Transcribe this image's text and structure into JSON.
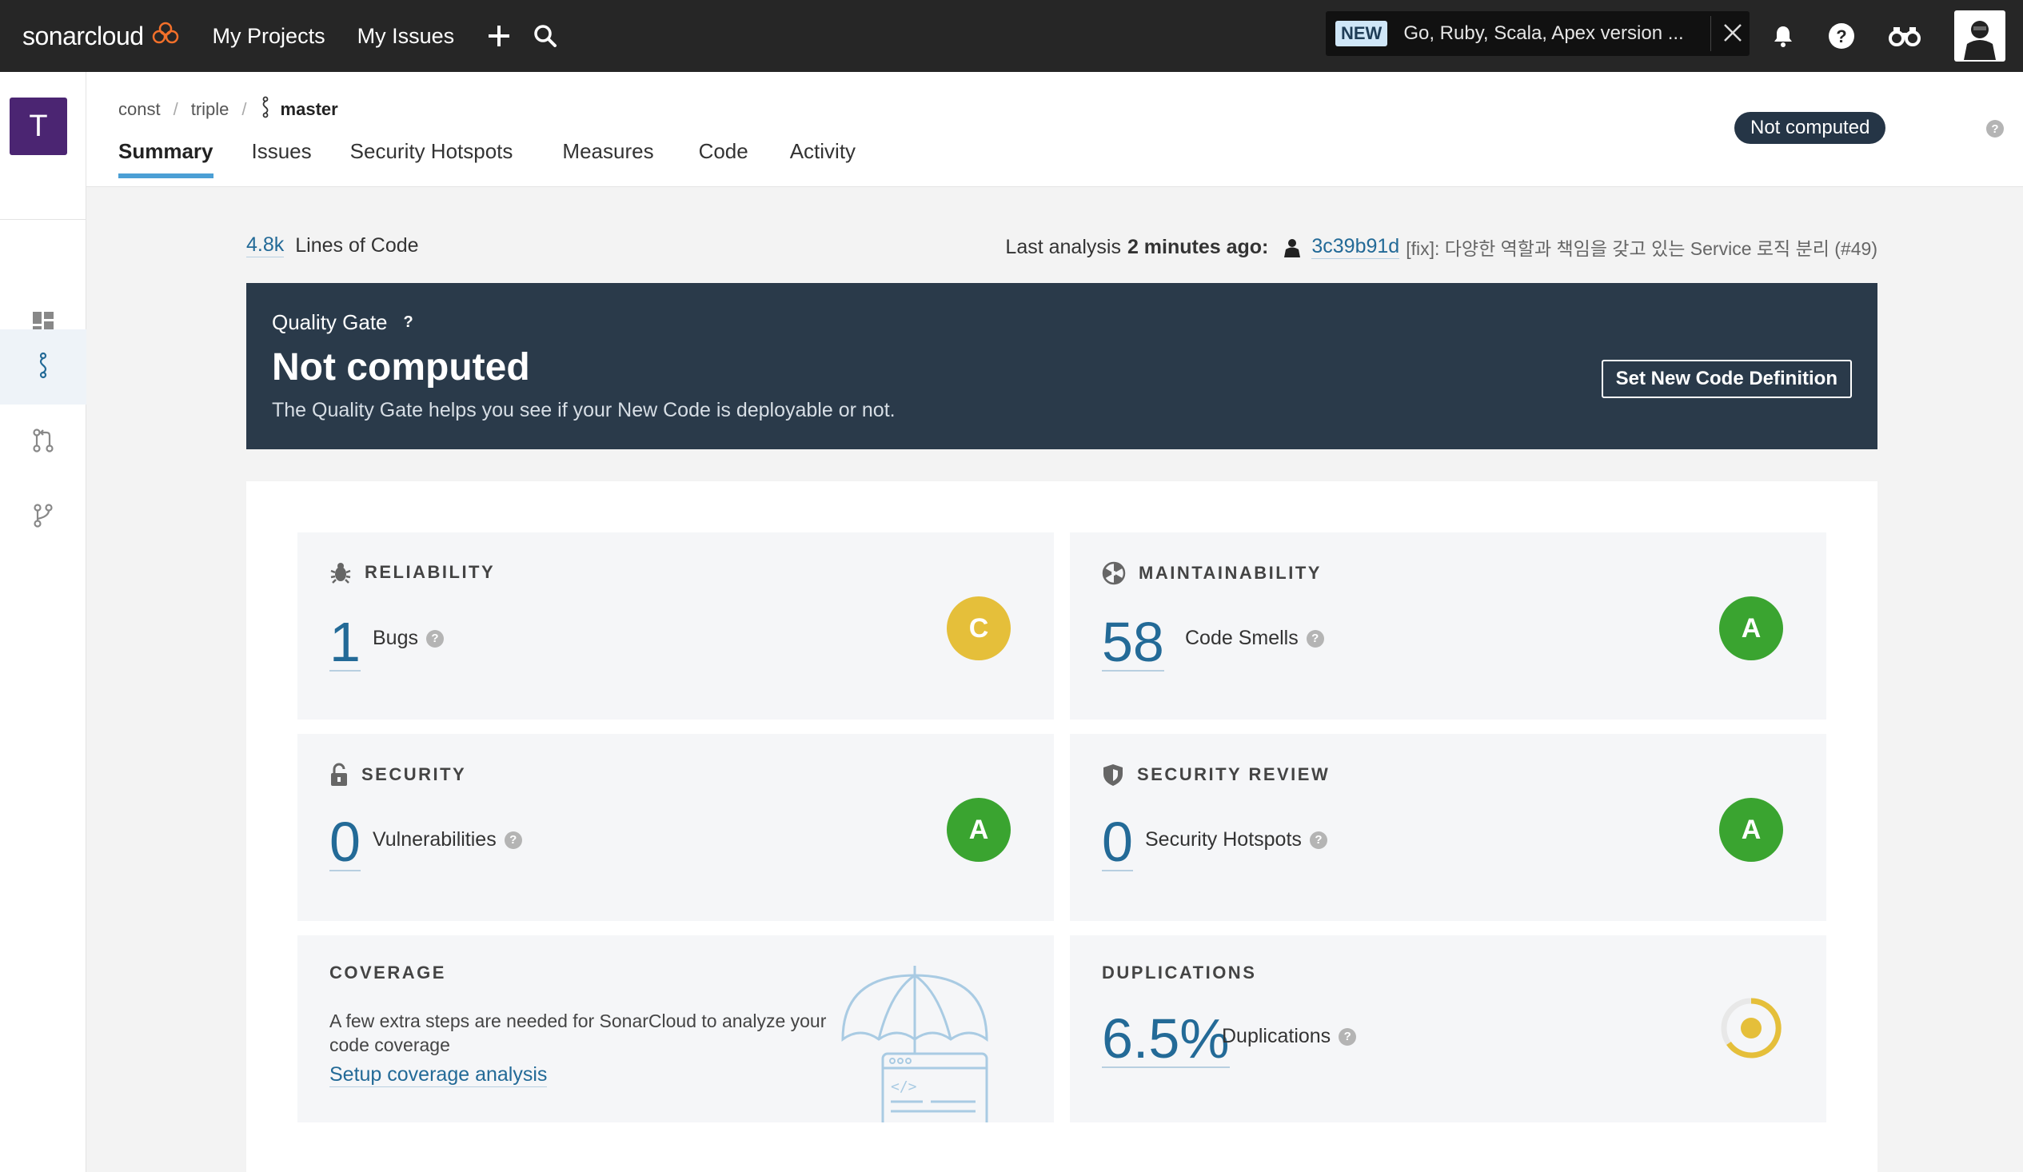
{
  "topbar": {
    "brand": "sonarcloud",
    "nav": [
      "My Projects",
      "My Issues"
    ],
    "news_badge": "NEW",
    "news_text": "Go, Ruby, Scala, Apex version ..."
  },
  "sidebar": {
    "project_initial": "T"
  },
  "breadcrumb": {
    "org": "const",
    "project": "triple",
    "branch": "master"
  },
  "tabs": [
    "Summary",
    "Issues",
    "Security Hotspots",
    "Measures",
    "Code",
    "Activity"
  ],
  "header_status": "Not computed",
  "summary": {
    "loc_value": "4.8k",
    "loc_label": "Lines of Code",
    "last_analysis_prefix": "Last analysis",
    "last_analysis_time": "2 minutes ago:",
    "commit_sha": "3c39b91d",
    "commit_msg": "[fix]: 다양한 역할과 책임을 갖고 있는 Service 로직 분리 (#49)"
  },
  "quality_gate": {
    "label": "Quality Gate",
    "help": "?",
    "status": "Not computed",
    "description": "The Quality Gate helps you see if your New Code is deployable or not.",
    "button": "Set New Code Definition"
  },
  "cards": {
    "reliability": {
      "title": "RELIABILITY",
      "value": "1",
      "label": "Bugs",
      "rating": "C"
    },
    "maintainability": {
      "title": "MAINTAINABILITY",
      "value": "58",
      "label": "Code Smells",
      "rating": "A"
    },
    "security": {
      "title": "SECURITY",
      "value": "0",
      "label": "Vulnerabilities",
      "rating": "A"
    },
    "security_review": {
      "title": "SECURITY REVIEW",
      "value": "0",
      "label": "Security Hotspots",
      "rating": "A"
    },
    "coverage": {
      "title": "COVERAGE",
      "text": "A few extra steps are needed for SonarCloud to analyze your code coverage",
      "link": "Setup coverage analysis"
    },
    "duplications": {
      "title": "DUPLICATIONS",
      "value": "6.5%",
      "label": "Duplications"
    }
  },
  "colors": {
    "topbar": "#262626",
    "accent": "#4b9fd5",
    "link": "#236a97",
    "rating_a": "#3aa430",
    "rating_c": "#e5bf3a",
    "quality_gate_bg": "#2a3a4a",
    "project_avatar": "#4b2572"
  },
  "icons": [
    "cloud-icon",
    "plus-icon",
    "search-icon",
    "close-icon",
    "bell-icon",
    "help-icon",
    "binoculars-icon",
    "dashboard-icon",
    "branch-icon",
    "pull-request-icon",
    "fork-icon",
    "bug-icon",
    "code-smell-icon",
    "lock-icon",
    "shield-icon",
    "umbrella-icon",
    "duplication-donut-icon"
  ]
}
